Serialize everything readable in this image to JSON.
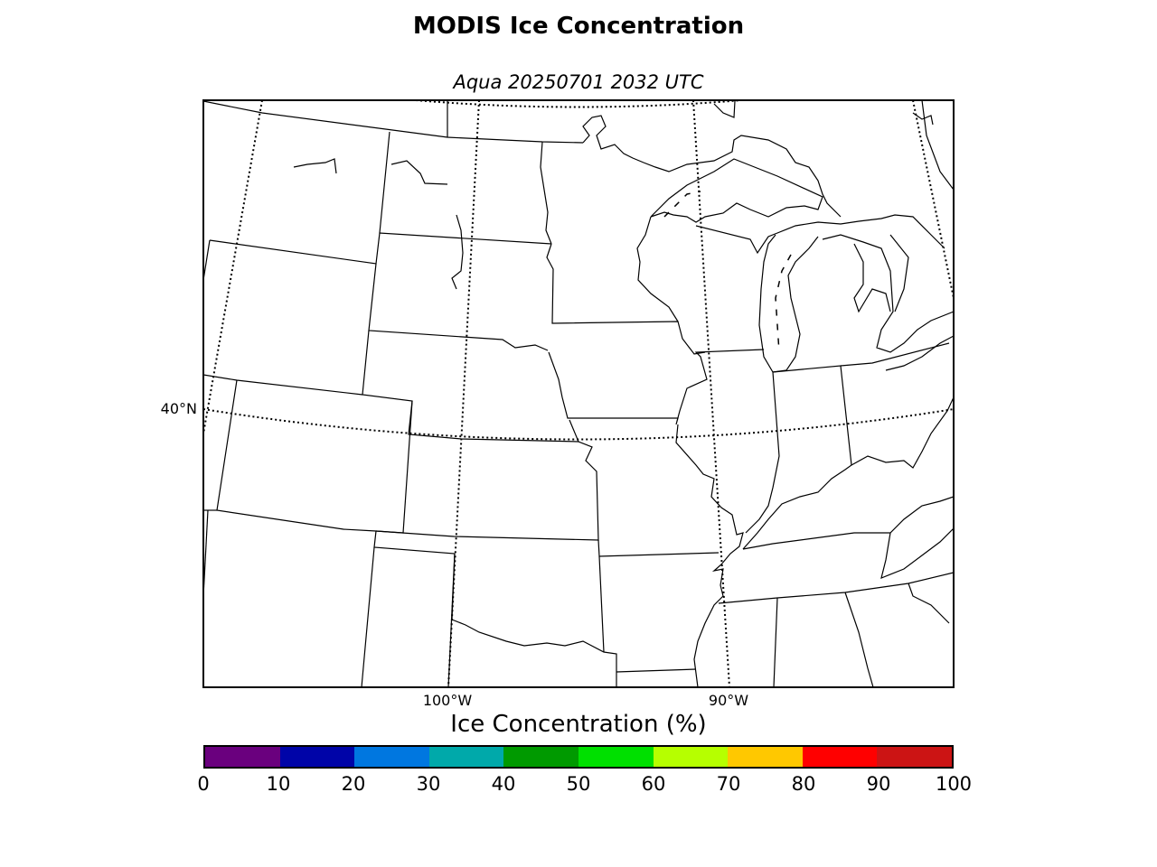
{
  "title": "MODIS Ice Concentration",
  "subtitle": "Aqua 20250701 2032 UTC",
  "map": {
    "lat_labels": [
      "40°N"
    ],
    "lon_labels": [
      "100°W",
      "90°W"
    ]
  },
  "colorbar": {
    "label": "Ice Concentration (%)",
    "ticks": [
      "0",
      "10",
      "20",
      "30",
      "40",
      "50",
      "60",
      "70",
      "80",
      "90",
      "100"
    ],
    "colors": [
      "#6a007e",
      "#0004a8",
      "#0077e0",
      "#00a9aa",
      "#009a00",
      "#00e000",
      "#b6ff00",
      "#ffc800",
      "#ff0000",
      "#cc1414"
    ]
  }
}
